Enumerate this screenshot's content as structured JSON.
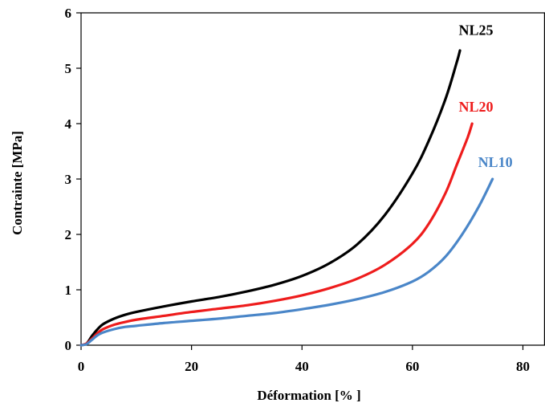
{
  "chart_data": {
    "type": "line",
    "title": "",
    "xlabel": "Déformation  [% ]",
    "ylabel": "Contrainte  [MPa]",
    "xlim": [
      0,
      84
    ],
    "ylim": [
      0,
      6
    ],
    "x_ticks": [
      "0",
      "20",
      "40",
      "60",
      "80"
    ],
    "y_ticks": [
      "0",
      "1",
      "2",
      "3",
      "4",
      "5",
      "6"
    ],
    "grid": false,
    "legend": "inline-labels",
    "series": [
      {
        "name": "NL25",
        "color": "#000000",
        "points": [
          [
            0,
            0
          ],
          [
            1,
            0.03
          ],
          [
            2,
            0.17
          ],
          [
            3,
            0.29
          ],
          [
            4,
            0.38
          ],
          [
            6,
            0.48
          ],
          [
            8,
            0.55
          ],
          [
            10,
            0.6
          ],
          [
            15,
            0.7
          ],
          [
            20,
            0.79
          ],
          [
            25,
            0.87
          ],
          [
            30,
            0.97
          ],
          [
            35,
            1.09
          ],
          [
            40,
            1.25
          ],
          [
            45,
            1.48
          ],
          [
            50,
            1.82
          ],
          [
            55,
            2.35
          ],
          [
            60,
            3.1
          ],
          [
            63,
            3.7
          ],
          [
            66,
            4.45
          ],
          [
            68,
            5.1
          ],
          [
            68.6,
            5.32
          ]
        ]
      },
      {
        "name": "NL20",
        "color": "#ee1c1c",
        "points": [
          [
            0,
            0
          ],
          [
            1,
            0.03
          ],
          [
            2,
            0.12
          ],
          [
            3,
            0.22
          ],
          [
            4,
            0.29
          ],
          [
            6,
            0.37
          ],
          [
            8,
            0.42
          ],
          [
            10,
            0.46
          ],
          [
            15,
            0.53
          ],
          [
            20,
            0.6
          ],
          [
            25,
            0.66
          ],
          [
            30,
            0.72
          ],
          [
            35,
            0.8
          ],
          [
            40,
            0.9
          ],
          [
            45,
            1.03
          ],
          [
            50,
            1.2
          ],
          [
            55,
            1.45
          ],
          [
            60,
            1.83
          ],
          [
            63,
            2.2
          ],
          [
            66,
            2.75
          ],
          [
            68,
            3.25
          ],
          [
            70,
            3.75
          ],
          [
            70.8,
            4.0
          ]
        ]
      },
      {
        "name": "NL10",
        "color": "#4a86c8",
        "points": [
          [
            0,
            0
          ],
          [
            1,
            0.02
          ],
          [
            2,
            0.1
          ],
          [
            3,
            0.18
          ],
          [
            4,
            0.23
          ],
          [
            6,
            0.29
          ],
          [
            8,
            0.33
          ],
          [
            10,
            0.35
          ],
          [
            15,
            0.4
          ],
          [
            20,
            0.44
          ],
          [
            25,
            0.48
          ],
          [
            30,
            0.53
          ],
          [
            35,
            0.58
          ],
          [
            40,
            0.65
          ],
          [
            45,
            0.73
          ],
          [
            50,
            0.83
          ],
          [
            55,
            0.96
          ],
          [
            60,
            1.15
          ],
          [
            63,
            1.33
          ],
          [
            66,
            1.6
          ],
          [
            69,
            2.0
          ],
          [
            72,
            2.5
          ],
          [
            74.5,
            3.0
          ]
        ]
      }
    ],
    "labels": [
      {
        "text": "NL25",
        "color": "#000000",
        "x": 71.5,
        "y": 5.6
      },
      {
        "text": "NL20",
        "color": "#ee1c1c",
        "x": 71.5,
        "y": 4.22
      },
      {
        "text": "NL10",
        "color": "#4a86c8",
        "x": 75.0,
        "y": 3.22
      }
    ]
  }
}
